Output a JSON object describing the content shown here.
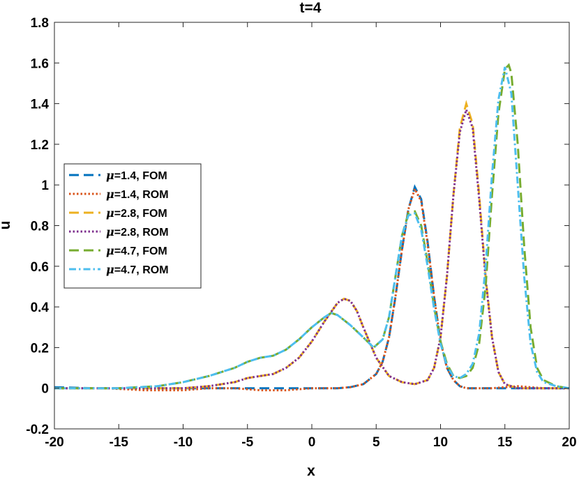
{
  "chart_data": {
    "type": "line",
    "title": "t=4",
    "xlabel": "x",
    "ylabel": "u",
    "xlim": [
      -20,
      20
    ],
    "ylim": [
      -0.2,
      1.8
    ],
    "xticks": [
      -20,
      -15,
      -10,
      -5,
      0,
      5,
      10,
      15,
      20
    ],
    "xtick_labels": [
      "-20",
      "-15",
      "-10",
      "-5",
      "0",
      "5",
      "10",
      "15",
      "20"
    ],
    "yticks": [
      -0.2,
      0,
      0.2,
      0.4,
      0.6,
      0.8,
      1,
      1.2,
      1.4,
      1.6,
      1.8
    ],
    "ytick_labels": [
      "-0.2",
      "0",
      "0.2",
      "0.4",
      "0.6",
      "0.8",
      "1",
      "1.2",
      "1.4",
      "1.6",
      "1.8"
    ],
    "grid": false,
    "legend_position": "left",
    "series": [
      {
        "name": "μ=1.4, FOM",
        "mu": "1.4",
        "kind": "FOM",
        "color": "#0072BD",
        "style": "dashed",
        "points": [
          [
            -20,
            0.005
          ],
          [
            -17,
            0.0
          ],
          [
            -14,
            0.0
          ],
          [
            -12,
            0.0
          ],
          [
            -10,
            0.0
          ],
          [
            -8,
            0.0
          ],
          [
            -6,
            0.0
          ],
          [
            -4,
            0.0
          ],
          [
            -2,
            0.0
          ],
          [
            0,
            0.0
          ],
          [
            2,
            0.0
          ],
          [
            3,
            0.005
          ],
          [
            4,
            0.02
          ],
          [
            5,
            0.07
          ],
          [
            5.5,
            0.13
          ],
          [
            6,
            0.25
          ],
          [
            6.5,
            0.45
          ],
          [
            7,
            0.68
          ],
          [
            7.5,
            0.88
          ],
          [
            8,
            0.99
          ],
          [
            8.5,
            0.93
          ],
          [
            9,
            0.72
          ],
          [
            9.5,
            0.45
          ],
          [
            10,
            0.23
          ],
          [
            10.5,
            0.1
          ],
          [
            11,
            0.04
          ],
          [
            11.5,
            0.01
          ],
          [
            12,
            0.0
          ],
          [
            14,
            0.0
          ],
          [
            16,
            0.0
          ],
          [
            18,
            0.0
          ],
          [
            20,
            0.0
          ]
        ]
      },
      {
        "name": "μ=1.4, ROM",
        "mu": "1.4",
        "kind": "ROM",
        "color": "#D95319",
        "style": "dotted",
        "points": [
          [
            -20,
            0.0
          ],
          [
            -18,
            0.0
          ],
          [
            -16,
            0.0
          ],
          [
            -13,
            -0.01
          ],
          [
            -10,
            -0.01
          ],
          [
            -8,
            0.0
          ],
          [
            -6,
            0.0
          ],
          [
            -4,
            -0.01
          ],
          [
            -2,
            -0.01
          ],
          [
            0,
            0.0
          ],
          [
            2,
            0.0
          ],
          [
            3,
            0.005
          ],
          [
            4,
            0.02
          ],
          [
            5,
            0.07
          ],
          [
            5.5,
            0.13
          ],
          [
            6,
            0.25
          ],
          [
            6.5,
            0.45
          ],
          [
            7,
            0.68
          ],
          [
            7.5,
            0.88
          ],
          [
            8,
            0.98
          ],
          [
            8.5,
            0.92
          ],
          [
            9,
            0.71
          ],
          [
            9.5,
            0.45
          ],
          [
            10,
            0.23
          ],
          [
            10.5,
            0.1
          ],
          [
            11,
            0.04
          ],
          [
            11.5,
            0.01
          ],
          [
            12,
            0.0
          ],
          [
            14,
            0.0
          ],
          [
            16,
            0.01
          ],
          [
            18,
            0.0
          ],
          [
            20,
            0.0
          ]
        ]
      },
      {
        "name": "μ=2.8, FOM",
        "mu": "2.8",
        "kind": "FOM",
        "color": "#EDB120",
        "style": "dashed",
        "points": [
          [
            -20,
            0.0
          ],
          [
            -15,
            0.0
          ],
          [
            -12,
            0.0
          ],
          [
            -10,
            0.0
          ],
          [
            -8,
            0.01
          ],
          [
            -6,
            0.03
          ],
          [
            -5,
            0.05
          ],
          [
            -4,
            0.06
          ],
          [
            -3,
            0.07
          ],
          [
            -2,
            0.1
          ],
          [
            -1,
            0.15
          ],
          [
            0,
            0.23
          ],
          [
            1,
            0.33
          ],
          [
            2,
            0.42
          ],
          [
            2.5,
            0.44
          ],
          [
            3,
            0.43
          ],
          [
            3.5,
            0.38
          ],
          [
            4,
            0.3
          ],
          [
            5,
            0.15
          ],
          [
            6,
            0.06
          ],
          [
            7,
            0.03
          ],
          [
            8,
            0.02
          ],
          [
            9,
            0.04
          ],
          [
            9.5,
            0.1
          ],
          [
            10,
            0.25
          ],
          [
            10.5,
            0.55
          ],
          [
            11,
            0.95
          ],
          [
            11.5,
            1.28
          ],
          [
            12,
            1.4
          ],
          [
            12.5,
            1.3
          ],
          [
            13,
            0.95
          ],
          [
            13.5,
            0.55
          ],
          [
            14,
            0.25
          ],
          [
            14.5,
            0.08
          ],
          [
            15,
            0.02
          ],
          [
            16,
            0.0
          ],
          [
            18,
            0.0
          ],
          [
            20,
            0.0
          ]
        ]
      },
      {
        "name": "μ=2.8, ROM",
        "mu": "2.8",
        "kind": "ROM",
        "color": "#7E2F8E",
        "style": "dotted",
        "points": [
          [
            -20,
            0.0
          ],
          [
            -15,
            0.0
          ],
          [
            -12,
            0.0
          ],
          [
            -10,
            0.0
          ],
          [
            -8,
            0.01
          ],
          [
            -6,
            0.03
          ],
          [
            -5,
            0.05
          ],
          [
            -4,
            0.06
          ],
          [
            -3,
            0.07
          ],
          [
            -2,
            0.1
          ],
          [
            -1,
            0.15
          ],
          [
            0,
            0.23
          ],
          [
            1,
            0.33
          ],
          [
            2,
            0.42
          ],
          [
            2.5,
            0.44
          ],
          [
            3,
            0.43
          ],
          [
            3.5,
            0.38
          ],
          [
            4,
            0.3
          ],
          [
            5,
            0.15
          ],
          [
            6,
            0.06
          ],
          [
            7,
            0.03
          ],
          [
            8,
            0.02
          ],
          [
            9,
            0.04
          ],
          [
            9.5,
            0.1
          ],
          [
            10,
            0.25
          ],
          [
            10.5,
            0.55
          ],
          [
            11,
            0.95
          ],
          [
            11.5,
            1.26
          ],
          [
            12,
            1.37
          ],
          [
            12.5,
            1.28
          ],
          [
            13,
            0.93
          ],
          [
            13.5,
            0.54
          ],
          [
            14,
            0.25
          ],
          [
            14.5,
            0.08
          ],
          [
            15,
            0.02
          ],
          [
            16,
            0.0
          ],
          [
            18,
            0.0
          ],
          [
            20,
            0.0
          ]
        ]
      },
      {
        "name": "μ=4.7, FOM",
        "mu": "4.7",
        "kind": "FOM",
        "color": "#77AC30",
        "style": "dashed",
        "points": [
          [
            -20,
            0.0
          ],
          [
            -15,
            0.0
          ],
          [
            -12,
            0.01
          ],
          [
            -10,
            0.03
          ],
          [
            -8,
            0.06
          ],
          [
            -6,
            0.1
          ],
          [
            -5,
            0.13
          ],
          [
            -4,
            0.15
          ],
          [
            -3,
            0.16
          ],
          [
            -2,
            0.19
          ],
          [
            -1,
            0.24
          ],
          [
            0,
            0.3
          ],
          [
            1,
            0.35
          ],
          [
            1.5,
            0.37
          ],
          [
            2,
            0.36
          ],
          [
            3,
            0.31
          ],
          [
            4,
            0.25
          ],
          [
            4.8,
            0.2
          ],
          [
            5.5,
            0.24
          ],
          [
            6,
            0.35
          ],
          [
            6.5,
            0.55
          ],
          [
            7,
            0.75
          ],
          [
            7.5,
            0.86
          ],
          [
            8,
            0.87
          ],
          [
            8.5,
            0.8
          ],
          [
            9,
            0.62
          ],
          [
            9.5,
            0.4
          ],
          [
            10,
            0.23
          ],
          [
            10.5,
            0.12
          ],
          [
            11,
            0.06
          ],
          [
            11.5,
            0.05
          ],
          [
            12,
            0.06
          ],
          [
            12.5,
            0.1
          ],
          [
            13,
            0.22
          ],
          [
            13.5,
            0.5
          ],
          [
            14,
            0.95
          ],
          [
            14.5,
            1.35
          ],
          [
            15,
            1.57
          ],
          [
            15.3,
            1.59
          ],
          [
            15.5,
            1.55
          ],
          [
            16,
            1.2
          ],
          [
            16.5,
            0.7
          ],
          [
            17,
            0.3
          ],
          [
            17.5,
            0.1
          ],
          [
            18,
            0.04
          ],
          [
            19,
            0.01
          ],
          [
            20,
            0.0
          ]
        ]
      },
      {
        "name": "μ=4.7, ROM",
        "mu": "4.7",
        "kind": "ROM",
        "color": "#4DBEEE",
        "style": "dashdot",
        "points": [
          [
            -20,
            0.0
          ],
          [
            -15,
            0.0
          ],
          [
            -12,
            0.01
          ],
          [
            -10,
            0.03
          ],
          [
            -8,
            0.06
          ],
          [
            -6,
            0.1
          ],
          [
            -5,
            0.13
          ],
          [
            -4,
            0.15
          ],
          [
            -3,
            0.16
          ],
          [
            -2,
            0.19
          ],
          [
            -1,
            0.24
          ],
          [
            0,
            0.3
          ],
          [
            1,
            0.35
          ],
          [
            1.5,
            0.37
          ],
          [
            2,
            0.36
          ],
          [
            3,
            0.31
          ],
          [
            4,
            0.25
          ],
          [
            4.8,
            0.2
          ],
          [
            5.5,
            0.24
          ],
          [
            6,
            0.35
          ],
          [
            6.5,
            0.55
          ],
          [
            7,
            0.75
          ],
          [
            7.5,
            0.85
          ],
          [
            8,
            0.86
          ],
          [
            8.5,
            0.78
          ],
          [
            9,
            0.6
          ],
          [
            9.5,
            0.39
          ],
          [
            10,
            0.22
          ],
          [
            10.5,
            0.11
          ],
          [
            11,
            0.06
          ],
          [
            11.5,
            0.05
          ],
          [
            12,
            0.07
          ],
          [
            12.5,
            0.12
          ],
          [
            13,
            0.27
          ],
          [
            13.5,
            0.6
          ],
          [
            14,
            1.05
          ],
          [
            14.5,
            1.42
          ],
          [
            15,
            1.58
          ],
          [
            15.5,
            1.45
          ],
          [
            16,
            1.0
          ],
          [
            16.5,
            0.55
          ],
          [
            17,
            0.22
          ],
          [
            17.5,
            0.08
          ],
          [
            18,
            0.03
          ],
          [
            19,
            0.01
          ],
          [
            20,
            0.0
          ]
        ]
      }
    ]
  }
}
